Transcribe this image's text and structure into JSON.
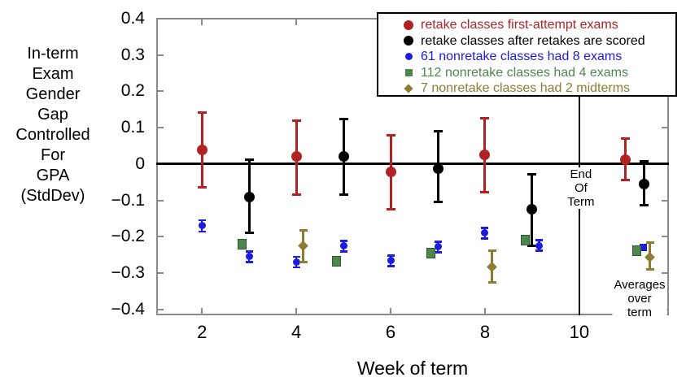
{
  "figure": {
    "background": "#ffffff"
  },
  "chart_data": {
    "type": "scatter",
    "title": "",
    "xlabel": "Week of term",
    "ylabel_lines": [
      "In-term",
      "Exam",
      "Gender",
      "Gap",
      "Controlled",
      "For",
      "GPA",
      "(StdDev)"
    ],
    "xlim": [
      1.03,
      11.9
    ],
    "ylim": [
      -0.416,
      0.402
    ],
    "xticks": [
      2,
      4,
      6,
      8,
      10
    ],
    "xtick_labels": [
      "2",
      "4",
      "6",
      "8",
      "10"
    ],
    "yticks": [
      0.4,
      0.3,
      0.2,
      0.1,
      0,
      -0.1,
      -0.2,
      -0.3,
      -0.4
    ],
    "ytick_labels": [
      "0.4",
      "0.3",
      "0.2",
      "0.1",
      "0",
      "−0.1",
      "−0.2",
      "−0.3",
      "−0.4"
    ],
    "grid": false,
    "legend_position": "top-right",
    "zero_line": true,
    "series": [
      {
        "name": "retake classes first-attempt exams",
        "color": "#b22222",
        "marker": "circle",
        "marker_size": 13,
        "bar_lw": 3,
        "cap_w": 11,
        "points": [
          {
            "x": 2.0,
            "y": 0.038,
            "lo": -0.065,
            "hi": 0.143
          },
          {
            "x": 4.0,
            "y": 0.022,
            "lo": -0.085,
            "hi": 0.12
          },
          {
            "x": 6.0,
            "y": -0.022,
            "lo": -0.125,
            "hi": 0.08
          },
          {
            "x": 8.0,
            "y": 0.025,
            "lo": -0.078,
            "hi": 0.127
          },
          {
            "x": 10.97,
            "y": 0.013,
            "lo": -0.045,
            "hi": 0.072
          }
        ]
      },
      {
        "name": "retake classes after retakes are scored",
        "color": "#000000",
        "marker": "circle",
        "marker_size": 13,
        "bar_lw": 3,
        "cap_w": 11,
        "points": [
          {
            "x": 3.0,
            "y": -0.09,
            "lo": -0.19,
            "hi": 0.012
          },
          {
            "x": 5.0,
            "y": 0.022,
            "lo": -0.085,
            "hi": 0.125
          },
          {
            "x": 7.0,
            "y": -0.012,
            "lo": -0.105,
            "hi": 0.092
          },
          {
            "x": 9.0,
            "y": -0.125,
            "lo": -0.225,
            "hi": -0.028
          },
          {
            "x": 11.38,
            "y": -0.054,
            "lo": -0.114,
            "hi": 0.009
          }
        ]
      },
      {
        "name": "61 nonretake classes had 8 exams",
        "color": "#1c1ce0",
        "marker": "circle",
        "marker_size": 9,
        "bar_lw": 2.5,
        "cap_w": 9,
        "points": [
          {
            "x": 2.0,
            "y": -0.17,
            "lo": -0.186,
            "hi": -0.154
          },
          {
            "x": 3.0,
            "y": -0.255,
            "lo": -0.27,
            "hi": -0.24
          },
          {
            "x": 4.0,
            "y": -0.27,
            "lo": -0.285,
            "hi": -0.255
          },
          {
            "x": 5.0,
            "y": -0.226,
            "lo": -0.241,
            "hi": -0.211
          },
          {
            "x": 6.0,
            "y": -0.266,
            "lo": -0.281,
            "hi": -0.251
          },
          {
            "x": 7.0,
            "y": -0.228,
            "lo": -0.243,
            "hi": -0.213
          },
          {
            "x": 8.0,
            "y": -0.19,
            "lo": -0.205,
            "hi": -0.175
          },
          {
            "x": 9.15,
            "y": -0.224,
            "lo": -0.239,
            "hi": -0.209
          },
          {
            "x": 11.36,
            "y": -0.23,
            "m": "square"
          }
        ]
      },
      {
        "name": "112 nonretake classes had 4 exams",
        "color": "#4e874e",
        "border_color": "#2d5a2d",
        "marker": "square",
        "marker_size": 11,
        "bar_lw": 2.5,
        "cap_w": 9,
        "points": [
          {
            "x": 2.85,
            "y": -0.221
          },
          {
            "x": 4.85,
            "y": -0.268
          },
          {
            "x": 6.85,
            "y": -0.246
          },
          {
            "x": 8.85,
            "y": -0.21
          },
          {
            "x": 11.22,
            "y": -0.239
          }
        ]
      },
      {
        "name": "7 nonretake classes had 2 midterms",
        "color": "#8d7d33",
        "marker": "diamond",
        "marker_size": 9,
        "bar_lw": 3,
        "cap_w": 10,
        "points": [
          {
            "x": 4.15,
            "y": -0.226,
            "lo": -0.27,
            "hi": -0.181
          },
          {
            "x": 8.15,
            "y": -0.282,
            "lo": -0.326,
            "hi": -0.237
          },
          {
            "x": 11.5,
            "y": -0.257,
            "lo": -0.291,
            "hi": -0.215
          }
        ]
      }
    ],
    "annotations": {
      "end_of_term": {
        "x": 10,
        "lines": [
          "End",
          "Of",
          "Term"
        ]
      },
      "averages": {
        "x": 11.25,
        "lines": [
          "Averages",
          "over term"
        ]
      }
    }
  },
  "legend": {
    "entries": [
      {
        "label": "retake classes first-attempt exams",
        "color": "#b22222",
        "marker": "circle",
        "size": 12
      },
      {
        "label": "retake classes after retakes are scored",
        "color": "#000000",
        "marker": "circle",
        "size": 12
      },
      {
        "label": "61 nonretake classes had 8 exams",
        "color": "#1c1ce0",
        "marker": "circle",
        "size": 9
      },
      {
        "label": "112 nonretake classes had 4 exams",
        "color": "#4e874e",
        "marker": "square",
        "size": 9
      },
      {
        "label": "7 nonretake classes had 2 midterms",
        "color": "#8d7d33",
        "marker": "diamond",
        "size": 8
      }
    ]
  }
}
